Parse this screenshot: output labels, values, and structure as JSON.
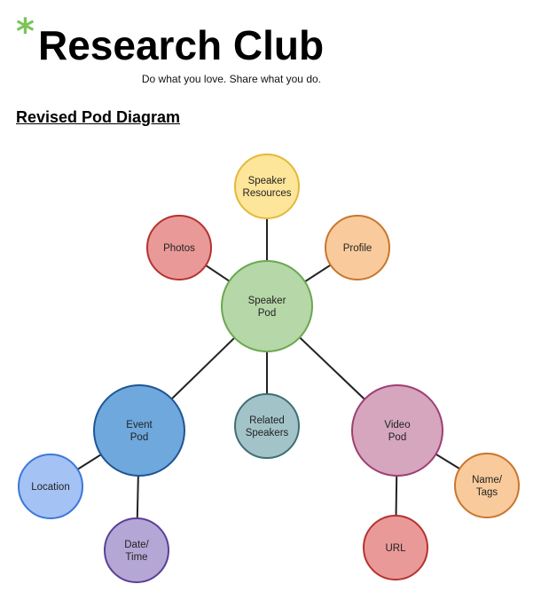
{
  "header": {
    "logo_mark": "*",
    "title": "Research Club",
    "tagline": "Do what you love. Share what you do."
  },
  "section_title": "Revised Pod Diagram",
  "diagram": {
    "nodes": [
      {
        "id": "speaker-resources",
        "lines": [
          "Speaker",
          "Resources"
        ],
        "fill": "#fde59a",
        "stroke": "#e3b93a"
      },
      {
        "id": "photos",
        "lines": [
          "Photos"
        ],
        "fill": "#ea9999",
        "stroke": "#b5332e"
      },
      {
        "id": "profile",
        "lines": [
          "Profile"
        ],
        "fill": "#f9cb9c",
        "stroke": "#c9762d"
      },
      {
        "id": "speaker-pod",
        "lines": [
          "Speaker",
          "Pod"
        ],
        "fill": "#b6d7a8",
        "stroke": "#6aa84f"
      },
      {
        "id": "event-pod",
        "lines": [
          "Event",
          "Pod"
        ],
        "fill": "#6fa8dc",
        "stroke": "#1f5594"
      },
      {
        "id": "related-speakers",
        "lines": [
          "Related",
          "Speakers"
        ],
        "fill": "#a2c4c9",
        "stroke": "#3f6e73"
      },
      {
        "id": "video-pod",
        "lines": [
          "Video",
          "Pod"
        ],
        "fill": "#d5a6bd",
        "stroke": "#9e3f72"
      },
      {
        "id": "location",
        "lines": [
          "Location"
        ],
        "fill": "#a4c2f4",
        "stroke": "#3c78d8"
      },
      {
        "id": "date-time",
        "lines": [
          "Date/",
          "Time"
        ],
        "fill": "#b4a7d6",
        "stroke": "#5b3f95"
      },
      {
        "id": "url",
        "lines": [
          "URL"
        ],
        "fill": "#ea9999",
        "stroke": "#b5332e"
      },
      {
        "id": "name-tags",
        "lines": [
          "Name/",
          "Tags"
        ],
        "fill": "#f9cb9c",
        "stroke": "#c9762d"
      }
    ],
    "edges": [
      [
        "speaker-pod",
        "speaker-resources"
      ],
      [
        "speaker-pod",
        "photos"
      ],
      [
        "speaker-pod",
        "profile"
      ],
      [
        "speaker-pod",
        "event-pod"
      ],
      [
        "speaker-pod",
        "related-speakers"
      ],
      [
        "speaker-pod",
        "video-pod"
      ],
      [
        "event-pod",
        "location"
      ],
      [
        "event-pod",
        "date-time"
      ],
      [
        "video-pod",
        "url"
      ],
      [
        "video-pod",
        "name-tags"
      ]
    ],
    "edge_color": "#222222"
  }
}
